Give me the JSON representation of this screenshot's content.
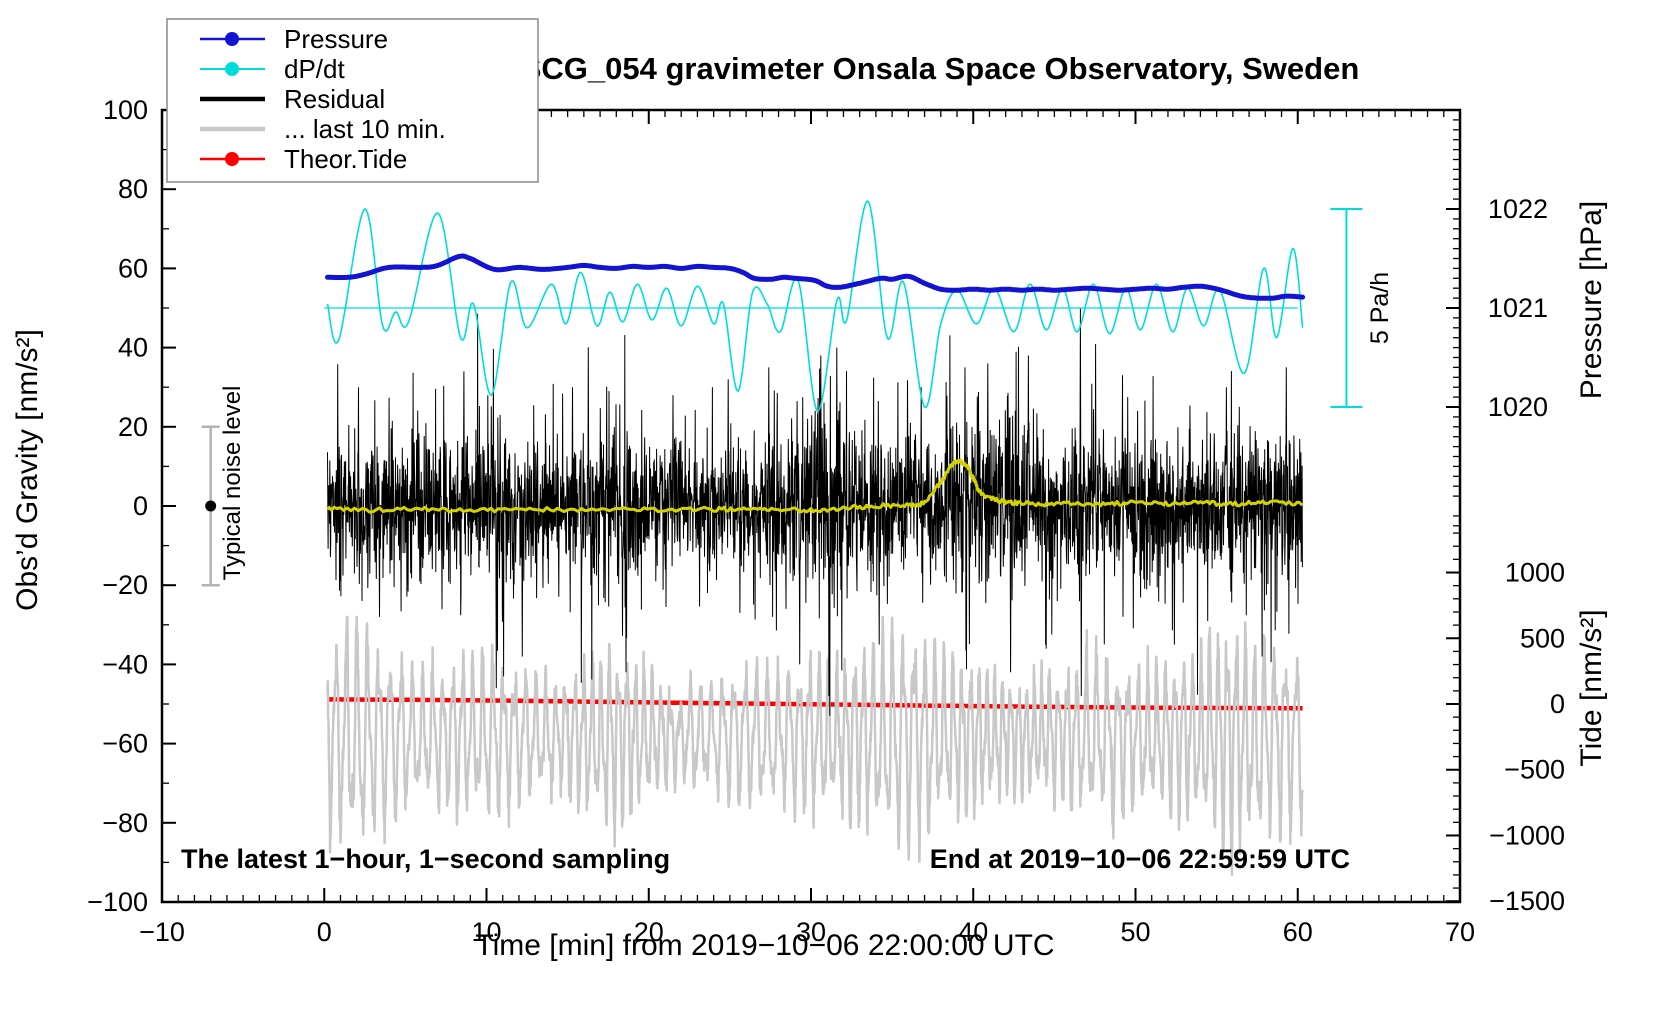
{
  "title": "SCG_054 gravimeter Onsala Space Observatory, Sweden",
  "annotations": {
    "sampling_note": "The latest 1−hour, 1−second sampling",
    "end_note": "End at 2019−10−06 22:59:59 UTC",
    "noise_bar_label": "Typical noise level",
    "pressure_rate_label": "5 Pa/h"
  },
  "legend": {
    "items": [
      {
        "label": "Pressure",
        "color": "#1313d2",
        "line_width": 2.5,
        "marker": true
      },
      {
        "label": "dP/dt",
        "color": "#00dcdc",
        "line_width": 2.0,
        "marker": true
      },
      {
        "label": "Residual",
        "color": "#000000",
        "line_width": 4.5,
        "marker": false
      },
      {
        "label": "... last 10 min.",
        "color": "#c8c8c8",
        "line_width": 4.5,
        "marker": false
      },
      {
        "label": "Theor.Tide",
        "color": "#ff0000",
        "line_width": 2.5,
        "marker": true
      }
    ]
  },
  "chart_data": {
    "type": "line",
    "title": "SCG_054 gravimeter Onsala Space Observatory, Sweden",
    "xlabel": "Time [min] from 2019−10−06 22:00:00 UTC",
    "x_range": [
      -10,
      70
    ],
    "x_major_ticks": [
      -10,
      0,
      10,
      20,
      30,
      40,
      50,
      60,
      70
    ],
    "x_minor_step": 1,
    "grid": false,
    "y_left": {
      "label": "Obs’d Gravity [nm/s²]",
      "range": [
        -100,
        100
      ],
      "major_ticks": [
        -100,
        -80,
        -60,
        -40,
        -20,
        0,
        20,
        40,
        60,
        80,
        100
      ],
      "minor_step": 10
    },
    "y_right_pressure": {
      "label": "Pressure [hPa]",
      "major_ticks": [
        1020,
        1021,
        1022
      ],
      "minor_step": 0.1,
      "gravity_units_per_hpa": 25,
      "hpa_at_gravity50": 1021
    },
    "y_right_tide": {
      "label": "Tide [nm/s²]",
      "major_ticks": [
        1000,
        500,
        0,
        -500,
        -1000,
        -1500
      ],
      "minor_step": 100,
      "tide_at_gravity_minus50": 0,
      "gravity_units_per_500_tide": 16.6
    },
    "series": {
      "pressure_hpa": {
        "name": "Pressure",
        "color": "#1313d2",
        "width": 5,
        "keypoints": [
          [
            0.2,
            1021.31
          ],
          [
            1.5,
            1021.31
          ],
          [
            2.5,
            1021.34
          ],
          [
            4,
            1021.41
          ],
          [
            6,
            1021.41
          ],
          [
            7,
            1021.43
          ],
          [
            8.3,
            1021.52
          ],
          [
            9,
            1021.5
          ],
          [
            10.5,
            1021.39
          ],
          [
            12,
            1021.41
          ],
          [
            13.5,
            1021.39
          ],
          [
            15,
            1021.41
          ],
          [
            16,
            1021.43
          ],
          [
            17,
            1021.41
          ],
          [
            18,
            1021.4
          ],
          [
            19,
            1021.42
          ],
          [
            20,
            1021.41
          ],
          [
            21,
            1021.42
          ],
          [
            22,
            1021.4
          ],
          [
            23,
            1021.42
          ],
          [
            24,
            1021.41
          ],
          [
            25,
            1021.4
          ],
          [
            25.8,
            1021.36
          ],
          [
            26.5,
            1021.3
          ],
          [
            27.5,
            1021.29
          ],
          [
            28.3,
            1021.31
          ],
          [
            29,
            1021.3
          ],
          [
            30.2,
            1021.28
          ],
          [
            31,
            1021.22
          ],
          [
            31.8,
            1021.21
          ],
          [
            33,
            1021.25
          ],
          [
            34.3,
            1021.3
          ],
          [
            35,
            1021.29
          ],
          [
            36,
            1021.32
          ],
          [
            37,
            1021.25
          ],
          [
            38,
            1021.19
          ],
          [
            39,
            1021.18
          ],
          [
            40,
            1021.19
          ],
          [
            41,
            1021.18
          ],
          [
            42,
            1021.19
          ],
          [
            43,
            1021.18
          ],
          [
            44,
            1021.19
          ],
          [
            45,
            1021.18
          ],
          [
            46,
            1021.19
          ],
          [
            47,
            1021.2
          ],
          [
            48,
            1021.19
          ],
          [
            49,
            1021.18
          ],
          [
            50,
            1021.19
          ],
          [
            51,
            1021.2
          ],
          [
            52,
            1021.19
          ],
          [
            53,
            1021.21
          ],
          [
            54,
            1021.22
          ],
          [
            54.8,
            1021.2
          ],
          [
            55.5,
            1021.17
          ],
          [
            56.5,
            1021.12
          ],
          [
            57.5,
            1021.1
          ],
          [
            58.5,
            1021.1
          ],
          [
            59.3,
            1021.12
          ],
          [
            60.3,
            1021.11
          ]
        ]
      },
      "dpdt_pa_per_h": {
        "name": "dP/dt",
        "color": "#00dcdc",
        "width": 1.6,
        "zero_line_gravity": 50,
        "keypoints": [
          [
            0.2,
            0.1
          ],
          [
            0.9,
            -0.8
          ],
          [
            2.5,
            2.5
          ],
          [
            3.6,
            -0.45
          ],
          [
            4.4,
            -0.1
          ],
          [
            5.2,
            -0.35
          ],
          [
            7,
            2.4
          ],
          [
            8.4,
            -0.75
          ],
          [
            9.2,
            0.1
          ],
          [
            10.3,
            -2.2
          ],
          [
            11.5,
            0.65
          ],
          [
            12.5,
            -0.5
          ],
          [
            14,
            0.6
          ],
          [
            14.9,
            -0.4
          ],
          [
            15.8,
            0.9
          ],
          [
            16.8,
            -0.45
          ],
          [
            17.6,
            0.4
          ],
          [
            18.4,
            -0.35
          ],
          [
            19.3,
            0.6
          ],
          [
            20.2,
            -0.3
          ],
          [
            21.1,
            0.5
          ],
          [
            22,
            -0.45
          ],
          [
            23,
            0.55
          ],
          [
            24,
            -0.4
          ],
          [
            24.6,
            0.1
          ],
          [
            25.5,
            -2.1
          ],
          [
            26.4,
            0.4
          ],
          [
            27.3,
            0.1
          ],
          [
            28.1,
            -0.6
          ],
          [
            29.2,
            0.7
          ],
          [
            30.4,
            -2.6
          ],
          [
            31.6,
            0.2
          ],
          [
            32.2,
            -0.3
          ],
          [
            33.5,
            2.7
          ],
          [
            34.7,
            -0.75
          ],
          [
            35.7,
            0.65
          ],
          [
            37,
            -2.5
          ],
          [
            38,
            -0.4
          ],
          [
            39,
            0.45
          ],
          [
            40.2,
            -0.4
          ],
          [
            41.3,
            0.5
          ],
          [
            42.5,
            -0.6
          ],
          [
            43.5,
            0.6
          ],
          [
            44.5,
            -0.55
          ],
          [
            45.5,
            0.5
          ],
          [
            46.4,
            -0.6
          ],
          [
            47.4,
            0.6
          ],
          [
            48.4,
            -0.65
          ],
          [
            49.4,
            0.5
          ],
          [
            50.3,
            -0.55
          ],
          [
            51.3,
            0.6
          ],
          [
            52.3,
            -0.6
          ],
          [
            53.2,
            0.5
          ],
          [
            54.2,
            -0.45
          ],
          [
            55.2,
            0.45
          ],
          [
            56.7,
            -1.65
          ],
          [
            57.9,
            1.0
          ],
          [
            58.7,
            -0.75
          ],
          [
            59.7,
            1.5
          ],
          [
            60.3,
            -0.5
          ]
        ]
      },
      "residual_nms2": {
        "name": "Residual",
        "color": "#000000",
        "width": 1,
        "center": 0,
        "sigma_keypoints": [
          [
            0.2,
            8
          ],
          [
            5,
            8
          ],
          [
            8,
            9
          ],
          [
            10,
            10
          ],
          [
            11,
            9
          ],
          [
            14,
            8
          ],
          [
            17,
            9
          ],
          [
            18,
            10
          ],
          [
            20,
            8
          ],
          [
            23,
            8
          ],
          [
            26,
            8
          ],
          [
            28,
            9
          ],
          [
            29.5,
            12
          ],
          [
            31,
            14
          ],
          [
            32,
            12
          ],
          [
            33,
            9
          ],
          [
            35,
            8
          ],
          [
            37,
            9
          ],
          [
            38,
            10
          ],
          [
            40,
            11
          ],
          [
            41,
            12
          ],
          [
            42,
            11
          ],
          [
            43,
            12
          ],
          [
            44,
            10
          ],
          [
            45,
            9
          ],
          [
            46,
            9
          ],
          [
            47,
            10
          ],
          [
            48,
            9
          ],
          [
            50,
            9
          ],
          [
            51,
            10
          ],
          [
            52,
            9
          ],
          [
            54,
            8
          ],
          [
            55,
            9
          ],
          [
            56,
            10
          ],
          [
            57,
            9
          ],
          [
            58,
            9
          ],
          [
            59,
            10
          ],
          [
            60.3,
            10
          ]
        ],
        "spikes": [
          [
            2.1,
            30
          ],
          [
            3.4,
            -28
          ],
          [
            8.6,
            34
          ],
          [
            10.6,
            -46
          ],
          [
            12.2,
            -38
          ],
          [
            15.3,
            30
          ],
          [
            18.6,
            -42
          ],
          [
            21.5,
            28
          ],
          [
            24.9,
            32
          ],
          [
            27.4,
            35
          ],
          [
            29.3,
            -40
          ],
          [
            30.6,
            38
          ],
          [
            31.1,
            -48
          ],
          [
            31.6,
            40
          ],
          [
            34.2,
            -35
          ],
          [
            36.8,
            30
          ],
          [
            39.5,
            35
          ],
          [
            40.9,
            36
          ],
          [
            42.3,
            -42
          ],
          [
            43.4,
            38
          ],
          [
            44.5,
            -36
          ],
          [
            46.6,
            50
          ],
          [
            46.66,
            -48
          ],
          [
            49.2,
            33
          ],
          [
            52.4,
            -35
          ],
          [
            55.6,
            30
          ],
          [
            57.8,
            -38
          ],
          [
            59.3,
            35
          ]
        ]
      },
      "residual_smoothed_nms2": {
        "name": "Residual smoothed",
        "color": "#d2d200",
        "width": 3,
        "keypoints": [
          [
            0.2,
            -0.5
          ],
          [
            3,
            -1
          ],
          [
            6,
            -0.8
          ],
          [
            9,
            -1.2
          ],
          [
            12,
            -0.8
          ],
          [
            15,
            -1
          ],
          [
            18,
            -0.8
          ],
          [
            21,
            -1
          ],
          [
            24,
            -0.8
          ],
          [
            26,
            -1
          ],
          [
            28,
            -0.8
          ],
          [
            30,
            -1
          ],
          [
            32,
            -0.5
          ],
          [
            34,
            0
          ],
          [
            36,
            0.3
          ],
          [
            37,
            1
          ],
          [
            38,
            6
          ],
          [
            38.8,
            10.8
          ],
          [
            39.5,
            10.5
          ],
          [
            40,
            7
          ],
          [
            40.5,
            3.2
          ],
          [
            41.5,
            1.5
          ],
          [
            42.5,
            0.8
          ],
          [
            44,
            0.5
          ],
          [
            46,
            0.8
          ],
          [
            48,
            0.5
          ],
          [
            50,
            0.8
          ],
          [
            52,
            0.5
          ],
          [
            54,
            0.8
          ],
          [
            56,
            0.5
          ],
          [
            58,
            0.8
          ],
          [
            60.3,
            0.5
          ]
        ]
      },
      "last10min_nms2": {
        "name": "... last 10 min.",
        "color": "#c8c8c8",
        "width": 2.5,
        "center": -58,
        "period_min": 0.55,
        "amplitude_keypoints": [
          [
            0.2,
            22
          ],
          [
            2,
            26
          ],
          [
            4,
            20
          ],
          [
            6,
            14
          ],
          [
            8,
            17
          ],
          [
            10,
            19
          ],
          [
            12,
            15
          ],
          [
            14,
            12
          ],
          [
            16,
            17
          ],
          [
            18,
            21
          ],
          [
            20,
            15
          ],
          [
            22,
            10
          ],
          [
            24,
            13
          ],
          [
            26,
            17
          ],
          [
            28,
            15
          ],
          [
            30,
            19
          ],
          [
            32,
            17
          ],
          [
            34,
            22
          ],
          [
            36,
            27
          ],
          [
            38,
            19
          ],
          [
            40,
            17
          ],
          [
            42,
            14
          ],
          [
            44,
            12
          ],
          [
            46,
            17
          ],
          [
            48,
            19
          ],
          [
            50,
            15
          ],
          [
            52,
            17
          ],
          [
            54,
            19
          ],
          [
            56,
            26
          ],
          [
            58,
            22
          ],
          [
            60.3,
            19
          ]
        ]
      },
      "theor_tide_nms2": {
        "name": "Theor.Tide",
        "color": "#ff0000",
        "width": 4.5,
        "keypoints": [
          [
            0.3,
            35
          ],
          [
            5,
            32
          ],
          [
            10,
            27
          ],
          [
            15,
            20
          ],
          [
            20,
            12
          ],
          [
            25,
            5
          ],
          [
            30,
            -2
          ],
          [
            35,
            -9
          ],
          [
            40,
            -16
          ],
          [
            45,
            -22
          ],
          [
            50,
            -27
          ],
          [
            55,
            -30
          ],
          [
            60.3,
            -32
          ]
        ]
      }
    },
    "annotation_shapes": {
      "noise_bar": {
        "x_time_min": -7,
        "gravity_span": [
          -20,
          20
        ],
        "dot_gravity": 0,
        "bar_color": "#b3b3b3",
        "dot_color": "#000000"
      },
      "pressure_rate_bar": {
        "x_time_min": 63,
        "gravity_span": [
          25,
          75
        ],
        "bar_color": "#00dcdc"
      }
    },
    "data_time_span_min": [
      0.2,
      60.3
    ]
  }
}
